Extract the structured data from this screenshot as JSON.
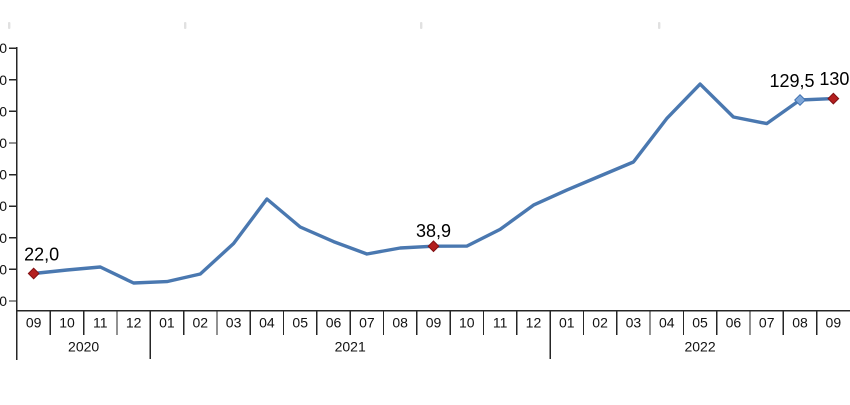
{
  "chart_data": {
    "type": "line",
    "title": "",
    "x_axis": {
      "year_groups": [
        {
          "year": "2020",
          "months": [
            "09",
            "10",
            "11",
            "12"
          ]
        },
        {
          "year": "2021",
          "months": [
            "01",
            "02",
            "03",
            "04",
            "05",
            "06",
            "07",
            "08",
            "09",
            "10",
            "11",
            "12"
          ]
        },
        {
          "year": "2022",
          "months": [
            "01",
            "02",
            "03",
            "04",
            "05",
            "06",
            "07",
            "08",
            "09"
          ]
        }
      ]
    },
    "y_axis": {
      "min": 0,
      "max": 160,
      "tick_step": 20,
      "tick_labels_visible": [
        "0",
        "0",
        "0",
        "0",
        "0",
        "0",
        "0",
        "0",
        "0"
      ],
      "note": "tick labels are cropped at the left image edge; only the trailing 0 digit of each is visible",
      "axis_color": "#262626"
    },
    "series": [
      {
        "name": "",
        "color": "#4a78b0",
        "values": [
          22.0,
          24.2,
          26.0,
          16.1,
          17.0,
          21.7,
          40.6,
          68.2,
          50.8,
          41.8,
          34.1,
          37.8,
          38.9,
          39.0,
          49.3,
          64.4,
          73.7,
          82.4,
          91.1,
          118.0,
          139.4,
          119.0,
          114.9,
          129.5,
          130.4
        ]
      }
    ],
    "labeled_points": [
      {
        "index": 0,
        "label": "22,0",
        "marker_color": "#b41f1f",
        "marker_edge": "#801114"
      },
      {
        "index": 12,
        "label": "38,9",
        "marker_color": "#b41f1f",
        "marker_edge": "#801114"
      },
      {
        "index": 23,
        "label": "129,5",
        "marker_color": "#7ea6d8",
        "marker_edge": "#4273b1"
      },
      {
        "index": 24,
        "label": "130,",
        "marker_color": "#b41f1f",
        "marker_edge": "#801114"
      }
    ],
    "grid": false,
    "legend": false
  }
}
